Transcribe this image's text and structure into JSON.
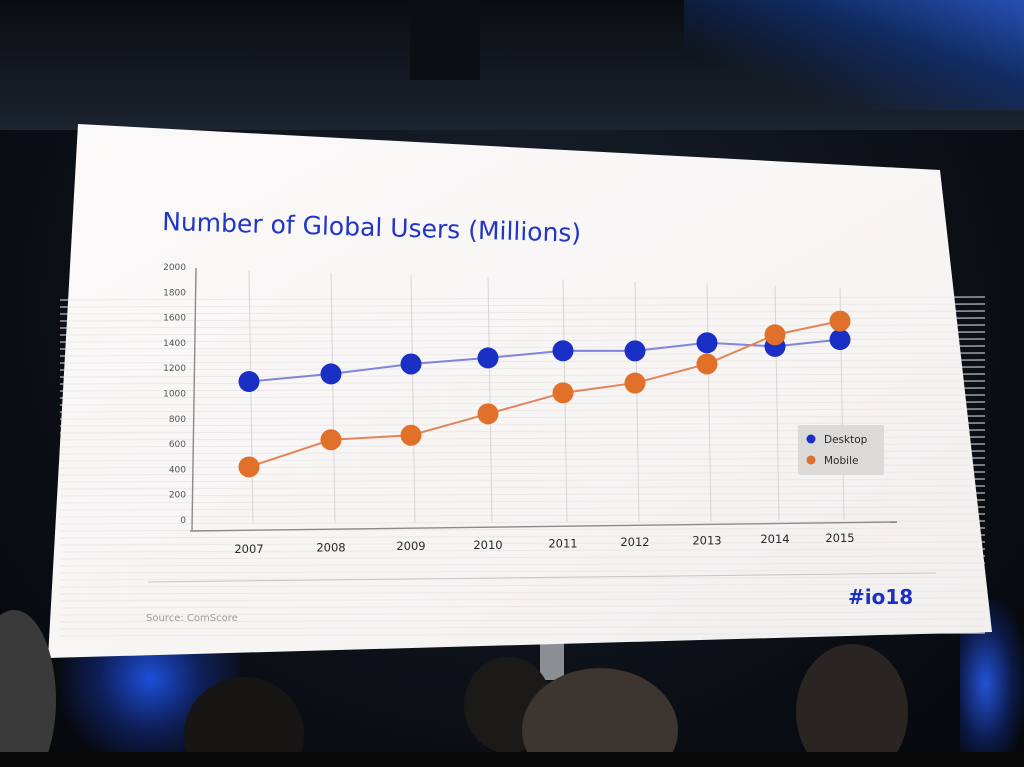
{
  "slide": {
    "source_text": "Source: ComScore",
    "logo_text": "#io18"
  },
  "chart_data": {
    "type": "line",
    "title": "Number of Global Users (Millions)",
    "xlabel": "",
    "ylabel": "",
    "categories": [
      "2007",
      "2008",
      "2009",
      "2010",
      "2011",
      "2012",
      "2013",
      "2014",
      "2015"
    ],
    "yticks": [
      "0",
      "200",
      "400",
      "600",
      "800",
      "1000",
      "1200",
      "1400",
      "1600",
      "1800",
      "2000"
    ],
    "ylim": [
      0,
      2000
    ],
    "grid": "vertical",
    "legend_position": "right",
    "series": [
      {
        "name": "Desktop",
        "color": "#1a2fc4",
        "values": [
          1100,
          1170,
          1260,
          1320,
          1390,
          1400,
          1480,
          1460,
          1530
        ]
      },
      {
        "name": "Mobile",
        "color": "#e0702a",
        "values": [
          420,
          640,
          680,
          860,
          1040,
          1130,
          1300,
          1560,
          1690
        ]
      }
    ]
  }
}
